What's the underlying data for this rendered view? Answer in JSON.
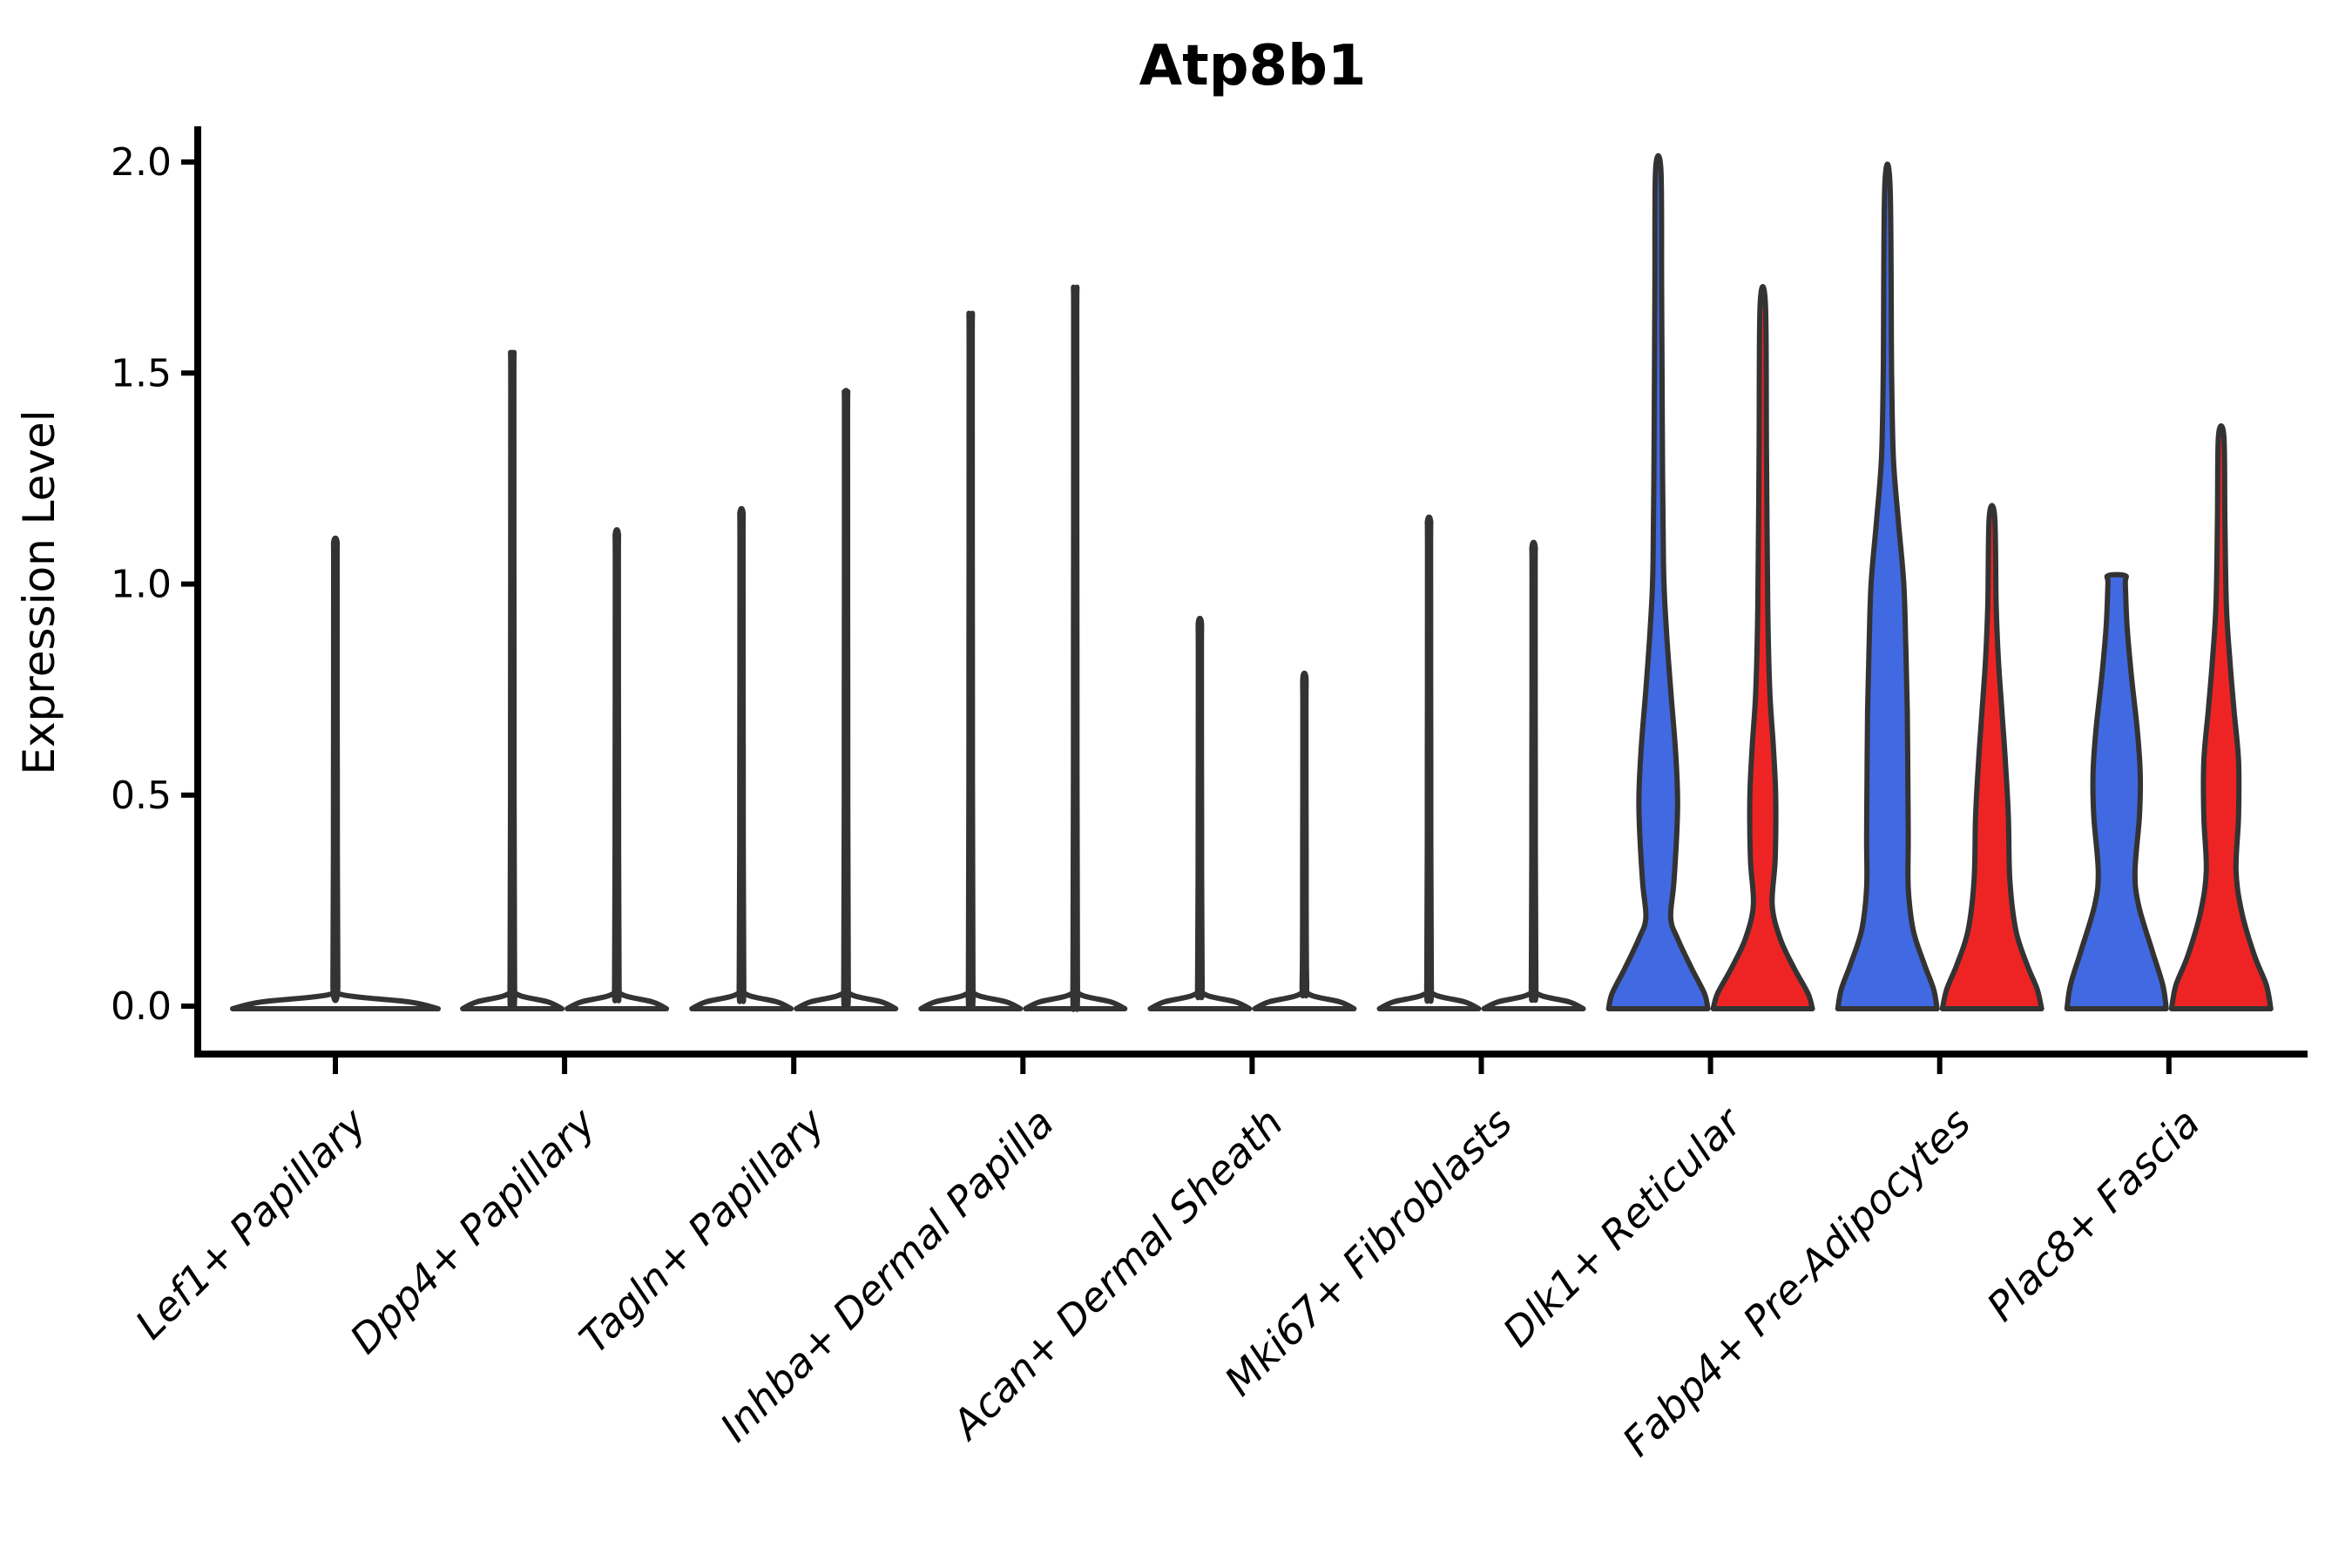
{
  "title": "Atp8b1",
  "axes": {
    "y_label": "Expression Level",
    "y_tick_labels": [
      "0.0",
      "0.5",
      "1.0",
      "1.5",
      "2.0"
    ]
  },
  "colors": {
    "blue": "#4169E1",
    "red": "#EE2424",
    "white_fill": "#FFFFFF",
    "violin_outline": "#333333",
    "axis": "#000000"
  },
  "chart_data": {
    "type": "violin",
    "title": "Atp8b1",
    "xlabel": "",
    "ylabel": "Expression Level",
    "ylim": [
      0,
      2.07
    ],
    "yticks": [
      0.0,
      0.5,
      1.0,
      1.5,
      2.0
    ],
    "legend": "none",
    "grid": false,
    "categories": [
      "Lef1+ Papillary",
      "Dpp4+ Papillary",
      "Tagln+ Papillary",
      "Inhba+ Dermal Papilla",
      "Acan+ Dermal Sheath",
      "Mki67+ Fibroblasts",
      "Dlk1+ Reticular",
      "Fabp4+ Pre-Adipocytes",
      "Plac8+ Fascia"
    ],
    "description": "Violin plot of Atp8b1 expression per fibroblast cell type. First six cell types: near-zero expression (flat white violins with thin spikes of rare expressing cells). Last three cell types: paired blue/red violins (two conditions) with substantial expression density between 0 and ~1.",
    "violins": [
      {
        "category_index": 0,
        "category": "Lef1+ Papillary",
        "position": "center",
        "fill": "white",
        "max_expression": 1.1,
        "width_profile": null
      },
      {
        "category_index": 1,
        "category": "Dpp4+ Papillary",
        "position": "left",
        "fill": "white",
        "max_expression": 1.54,
        "width_profile": null
      },
      {
        "category_index": 1,
        "category": "Dpp4+ Papillary",
        "position": "right",
        "fill": "white",
        "max_expression": 1.12,
        "width_profile": null
      },
      {
        "category_index": 2,
        "category": "Tagln+ Papillary",
        "position": "left",
        "fill": "white",
        "max_expression": 1.17,
        "width_profile": null
      },
      {
        "category_index": 2,
        "category": "Tagln+ Papillary",
        "position": "right",
        "fill": "white",
        "max_expression": 1.45,
        "width_profile": null
      },
      {
        "category_index": 3,
        "category": "Inhba+ Dermal Papilla",
        "position": "left",
        "fill": "white",
        "max_expression": 1.63,
        "width_profile": null
      },
      {
        "category_index": 3,
        "category": "Inhba+ Dermal Papilla",
        "position": "right",
        "fill": "white",
        "max_expression": 1.69,
        "width_profile": null
      },
      {
        "category_index": 4,
        "category": "Acan+ Dermal Sheath",
        "position": "left",
        "fill": "white",
        "max_expression": 0.91,
        "width_profile": null
      },
      {
        "category_index": 4,
        "category": "Acan+ Dermal Sheath",
        "position": "right",
        "fill": "white",
        "max_expression": 0.78,
        "width_profile": null
      },
      {
        "category_index": 5,
        "category": "Mki67+ Fibroblasts",
        "position": "left",
        "fill": "white",
        "max_expression": 1.15,
        "width_profile": null
      },
      {
        "category_index": 5,
        "category": "Mki67+ Fibroblasts",
        "position": "right",
        "fill": "white",
        "max_expression": 1.09,
        "width_profile": null
      },
      {
        "category_index": 6,
        "category": "Dlk1+ Reticular",
        "position": "left",
        "fill": "blue",
        "max_expression": 1.98,
        "width_profile": [
          [
            0,
            1
          ],
          [
            0.03,
            0.93
          ],
          [
            0.09,
            0.67
          ],
          [
            0.16,
            0.39
          ],
          [
            0.21,
            0.25
          ],
          [
            0.3,
            0.32
          ],
          [
            0.47,
            0.39
          ],
          [
            0.6,
            0.35
          ],
          [
            0.75,
            0.25
          ],
          [
            0.9,
            0.16
          ],
          [
            1.05,
            0.105
          ],
          [
            1.4,
            0.08
          ],
          [
            1.7,
            0.068
          ],
          [
            1.98,
            0.055
          ]
        ]
      },
      {
        "category_index": 6,
        "category": "Dlk1+ Reticular",
        "position": "right",
        "fill": "red",
        "max_expression": 1.66,
        "width_profile": [
          [
            0,
            1
          ],
          [
            0.03,
            0.91
          ],
          [
            0.09,
            0.63
          ],
          [
            0.16,
            0.35
          ],
          [
            0.24,
            0.19
          ],
          [
            0.35,
            0.25
          ],
          [
            0.5,
            0.26
          ],
          [
            0.62,
            0.21
          ],
          [
            0.75,
            0.14
          ],
          [
            0.95,
            0.1
          ],
          [
            1.3,
            0.075
          ],
          [
            1.66,
            0.055
          ]
        ]
      },
      {
        "category_index": 7,
        "category": "Fabp4+ Pre-Adipocytes",
        "position": "left",
        "fill": "blue",
        "max_expression": 1.94,
        "width_profile": [
          [
            0,
            1
          ],
          [
            0.04,
            0.93
          ],
          [
            0.1,
            0.74
          ],
          [
            0.18,
            0.52
          ],
          [
            0.28,
            0.42
          ],
          [
            0.4,
            0.42
          ],
          [
            0.55,
            0.41
          ],
          [
            0.7,
            0.4
          ],
          [
            0.85,
            0.37
          ],
          [
            1.0,
            0.33
          ],
          [
            1.15,
            0.22
          ],
          [
            1.3,
            0.12
          ],
          [
            1.5,
            0.085
          ],
          [
            1.94,
            0.055
          ]
        ]
      },
      {
        "category_index": 7,
        "category": "Fabp4+ Pre-Adipocytes",
        "position": "right",
        "fill": "red",
        "max_expression": 1.16,
        "width_profile": [
          [
            0,
            1
          ],
          [
            0.04,
            0.91
          ],
          [
            0.1,
            0.7
          ],
          [
            0.18,
            0.48
          ],
          [
            0.3,
            0.36
          ],
          [
            0.45,
            0.33
          ],
          [
            0.58,
            0.27
          ],
          [
            0.7,
            0.2
          ],
          [
            0.82,
            0.13
          ],
          [
            0.95,
            0.085
          ],
          [
            1.16,
            0.055
          ]
        ]
      },
      {
        "category_index": 8,
        "category": "Plac8+ Fascia",
        "position": "left",
        "fill": "blue",
        "max_expression": 1.02,
        "width_profile": [
          [
            0,
            1
          ],
          [
            0.05,
            0.93
          ],
          [
            0.13,
            0.72
          ],
          [
            0.24,
            0.44
          ],
          [
            0.32,
            0.37
          ],
          [
            0.45,
            0.46
          ],
          [
            0.55,
            0.475
          ],
          [
            0.65,
            0.42
          ],
          [
            0.78,
            0.3
          ],
          [
            0.9,
            0.21
          ],
          [
            1.0,
            0.175
          ],
          [
            1.02,
            0.17
          ]
        ]
      },
      {
        "category_index": 8,
        "category": "Plac8+ Fascia",
        "position": "right",
        "fill": "red",
        "max_expression": 1.35,
        "width_profile": [
          [
            0,
            1
          ],
          [
            0.05,
            0.91
          ],
          [
            0.12,
            0.67
          ],
          [
            0.22,
            0.42
          ],
          [
            0.32,
            0.3
          ],
          [
            0.45,
            0.35
          ],
          [
            0.58,
            0.35
          ],
          [
            0.7,
            0.26
          ],
          [
            0.82,
            0.175
          ],
          [
            0.95,
            0.105
          ],
          [
            1.15,
            0.075
          ],
          [
            1.35,
            0.055
          ]
        ]
      }
    ]
  }
}
